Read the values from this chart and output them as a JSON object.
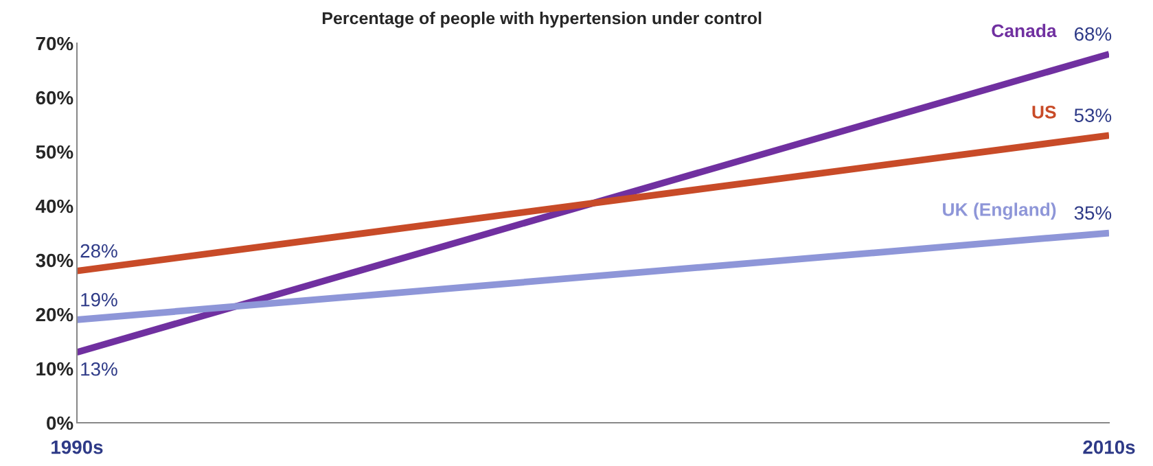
{
  "chart_data": {
    "type": "line",
    "title": "Percentage of people with hypertension under control",
    "categories": [
      "1990s",
      "2010s"
    ],
    "series": [
      {
        "name": "Canada",
        "color": "#7030a0",
        "values": [
          13,
          68
        ],
        "value_labels": [
          "13%",
          "68%"
        ]
      },
      {
        "name": "US",
        "color": "#c84b28",
        "values": [
          28,
          53
        ],
        "value_labels": [
          "28%",
          "53%"
        ]
      },
      {
        "name": "UK (England)",
        "color": "#8e96d8",
        "values": [
          19,
          35
        ],
        "value_labels": [
          "19%",
          "35%"
        ]
      }
    ],
    "ylim": [
      0,
      70
    ],
    "yticks": [
      {
        "value": 0,
        "label": "0%"
      },
      {
        "value": 10,
        "label": "10%"
      },
      {
        "value": 20,
        "label": "20%"
      },
      {
        "value": 30,
        "label": "30%"
      },
      {
        "value": 40,
        "label": "40%"
      },
      {
        "value": 50,
        "label": "50%"
      },
      {
        "value": 60,
        "label": "60%"
      },
      {
        "value": 70,
        "label": "70%"
      }
    ],
    "grid": false,
    "legend": false,
    "marker": "none",
    "line_style": "solid"
  }
}
